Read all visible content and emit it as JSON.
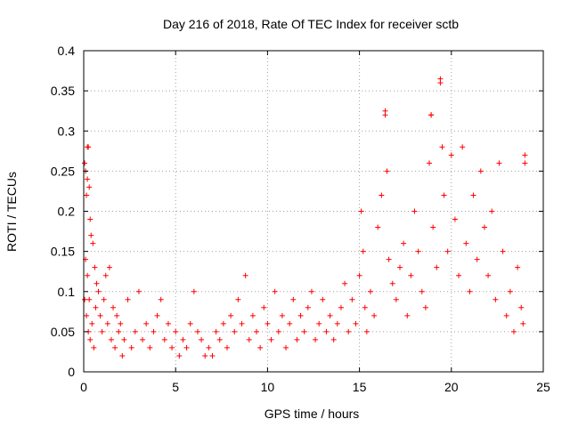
{
  "chart_data": {
    "type": "scatter",
    "title": "Day 216 of 2018, Rate Of TEC Index for receiver sctb",
    "xlabel": "GPS time / hours",
    "ylabel": "ROTI / TECUs",
    "xlim": [
      0,
      25
    ],
    "ylim": [
      0,
      0.4
    ],
    "xticks": [
      0,
      5,
      10,
      15,
      20,
      25
    ],
    "xtick_labels": [
      "0",
      "5",
      "10",
      "15",
      "20",
      "25"
    ],
    "yticks": [
      0,
      0.05,
      0.1,
      0.15,
      0.2,
      0.25,
      0.3,
      0.35,
      0.4
    ],
    "ytick_labels": [
      "0",
      "0.05",
      "0.1",
      "0.15",
      "0.2",
      "0.25",
      "0.3",
      "0.35",
      "0.4"
    ],
    "grid": true,
    "marker": "+",
    "color": "#ff0000",
    "series": [
      {
        "name": "ROTI",
        "points": [
          [
            0.05,
            0.26
          ],
          [
            0.1,
            0.25
          ],
          [
            0.15,
            0.22
          ],
          [
            0.2,
            0.24
          ],
          [
            0.25,
            0.28
          ],
          [
            0.3,
            0.23
          ],
          [
            0.35,
            0.19
          ],
          [
            0.1,
            0.14
          ],
          [
            0.2,
            0.12
          ],
          [
            0.3,
            0.09
          ],
          [
            0.4,
            0.17
          ],
          [
            0.5,
            0.16
          ],
          [
            0.6,
            0.13
          ],
          [
            0.7,
            0.11
          ],
          [
            0.05,
            0.09
          ],
          [
            0.15,
            0.07
          ],
          [
            0.25,
            0.05
          ],
          [
            0.35,
            0.04
          ],
          [
            0.45,
            0.06
          ],
          [
            0.55,
            0.03
          ],
          [
            0.65,
            0.08
          ],
          [
            0.8,
            0.1
          ],
          [
            0.9,
            0.07
          ],
          [
            1.0,
            0.05
          ],
          [
            1.1,
            0.09
          ],
          [
            1.2,
            0.12
          ],
          [
            1.3,
            0.06
          ],
          [
            1.4,
            0.13
          ],
          [
            1.5,
            0.04
          ],
          [
            1.6,
            0.08
          ],
          [
            1.7,
            0.03
          ],
          [
            1.8,
            0.07
          ],
          [
            1.9,
            0.05
          ],
          [
            2.0,
            0.06
          ],
          [
            2.1,
            0.02
          ],
          [
            2.2,
            0.04
          ],
          [
            2.4,
            0.09
          ],
          [
            2.6,
            0.03
          ],
          [
            2.8,
            0.05
          ],
          [
            3.0,
            0.1
          ],
          [
            3.2,
            0.04
          ],
          [
            3.4,
            0.06
          ],
          [
            3.6,
            0.03
          ],
          [
            3.8,
            0.05
          ],
          [
            4.0,
            0.07
          ],
          [
            4.2,
            0.09
          ],
          [
            4.4,
            0.04
          ],
          [
            4.6,
            0.06
          ],
          [
            4.8,
            0.03
          ],
          [
            5.0,
            0.05
          ],
          [
            5.2,
            0.02
          ],
          [
            5.4,
            0.04
          ],
          [
            5.6,
            0.03
          ],
          [
            5.8,
            0.06
          ],
          [
            6.0,
            0.1
          ],
          [
            6.2,
            0.05
          ],
          [
            6.4,
            0.04
          ],
          [
            6.6,
            0.02
          ],
          [
            6.8,
            0.03
          ],
          [
            7.0,
            0.02
          ],
          [
            7.2,
            0.05
          ],
          [
            7.4,
            0.04
          ],
          [
            7.6,
            0.06
          ],
          [
            7.8,
            0.03
          ],
          [
            8.0,
            0.07
          ],
          [
            8.2,
            0.05
          ],
          [
            8.4,
            0.09
          ],
          [
            8.6,
            0.06
          ],
          [
            8.8,
            0.12
          ],
          [
            9.0,
            0.04
          ],
          [
            9.2,
            0.07
          ],
          [
            9.4,
            0.05
          ],
          [
            9.6,
            0.03
          ],
          [
            9.8,
            0.08
          ],
          [
            10.0,
            0.06
          ],
          [
            10.2,
            0.04
          ],
          [
            10.4,
            0.1
          ],
          [
            10.6,
            0.05
          ],
          [
            10.8,
            0.07
          ],
          [
            11.0,
            0.03
          ],
          [
            11.2,
            0.06
          ],
          [
            11.4,
            0.09
          ],
          [
            11.6,
            0.04
          ],
          [
            11.8,
            0.07
          ],
          [
            12.0,
            0.05
          ],
          [
            12.2,
            0.08
          ],
          [
            12.4,
            0.1
          ],
          [
            12.6,
            0.04
          ],
          [
            12.8,
            0.06
          ],
          [
            13.0,
            0.09
          ],
          [
            13.2,
            0.05
          ],
          [
            13.4,
            0.07
          ],
          [
            13.6,
            0.04
          ],
          [
            13.8,
            0.06
          ],
          [
            14.0,
            0.08
          ],
          [
            14.2,
            0.11
          ],
          [
            14.4,
            0.05
          ],
          [
            14.6,
            0.09
          ],
          [
            14.8,
            0.06
          ],
          [
            15.0,
            0.12
          ],
          [
            15.1,
            0.2
          ],
          [
            15.2,
            0.15
          ],
          [
            15.3,
            0.08
          ],
          [
            15.4,
            0.05
          ],
          [
            15.6,
            0.1
          ],
          [
            15.8,
            0.07
          ],
          [
            16.0,
            0.18
          ],
          [
            16.2,
            0.22
          ],
          [
            16.4,
            0.32
          ],
          [
            16.5,
            0.25
          ],
          [
            16.6,
            0.14
          ],
          [
            16.8,
            0.11
          ],
          [
            17.0,
            0.09
          ],
          [
            17.2,
            0.13
          ],
          [
            17.4,
            0.16
          ],
          [
            17.6,
            0.07
          ],
          [
            17.8,
            0.12
          ],
          [
            18.0,
            0.2
          ],
          [
            18.2,
            0.15
          ],
          [
            18.4,
            0.1
          ],
          [
            18.6,
            0.08
          ],
          [
            18.8,
            0.26
          ],
          [
            18.9,
            0.32
          ],
          [
            19.0,
            0.18
          ],
          [
            19.2,
            0.13
          ],
          [
            19.4,
            0.36
          ],
          [
            19.5,
            0.28
          ],
          [
            19.6,
            0.22
          ],
          [
            19.8,
            0.15
          ],
          [
            20.0,
            0.27
          ],
          [
            20.2,
            0.19
          ],
          [
            20.4,
            0.12
          ],
          [
            20.6,
            0.28
          ],
          [
            20.8,
            0.16
          ],
          [
            21.0,
            0.1
          ],
          [
            21.2,
            0.22
          ],
          [
            21.4,
            0.14
          ],
          [
            21.6,
            0.25
          ],
          [
            21.8,
            0.18
          ],
          [
            22.0,
            0.12
          ],
          [
            22.2,
            0.2
          ],
          [
            22.4,
            0.09
          ],
          [
            22.6,
            0.26
          ],
          [
            22.8,
            0.15
          ],
          [
            23.0,
            0.07
          ],
          [
            23.2,
            0.1
          ],
          [
            23.4,
            0.05
          ],
          [
            23.6,
            0.13
          ],
          [
            23.8,
            0.08
          ],
          [
            24.0,
            0.27
          ],
          [
            24.0,
            0.26
          ],
          [
            23.9,
            0.06
          ],
          [
            19.4,
            0.365
          ],
          [
            16.4,
            0.325
          ],
          [
            18.9,
            0.32
          ],
          [
            0.2,
            0.28
          ]
        ]
      }
    ]
  }
}
